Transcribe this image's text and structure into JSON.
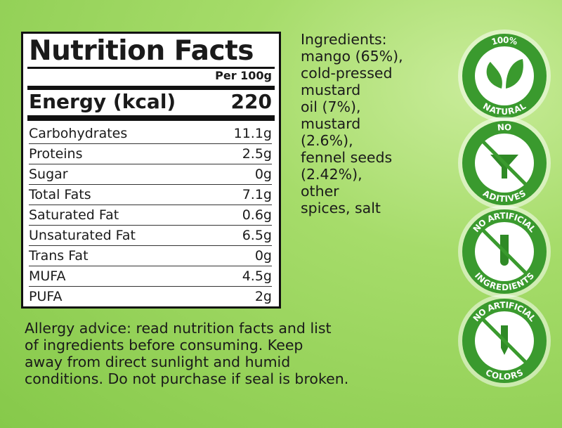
{
  "nutrition": {
    "title": "Nutrition Facts",
    "basis": "Per 100g",
    "energy": {
      "label": "Energy (kcal)",
      "value": "220"
    },
    "rows": [
      [
        "Carbohydrates",
        "11.1g"
      ],
      [
        "Proteins",
        "2.5g"
      ],
      [
        "Sugar",
        "0g"
      ],
      [
        "Total Fats",
        "7.1g"
      ],
      [
        "Saturated Fat",
        "0.6g"
      ],
      [
        "Unsaturated Fat",
        "6.5g"
      ],
      [
        "Trans Fat",
        "0g"
      ],
      [
        "MUFA",
        "4.5g"
      ],
      [
        "PUFA",
        "2g"
      ]
    ]
  },
  "ingredients": [
    "Ingredients:",
    "mango (65%),",
    "cold-pressed",
    "mustard",
    "oil (7%),",
    "mustard",
    "(2.6%),",
    "fennel seeds",
    "(2.42%),",
    "other",
    "spices, salt"
  ],
  "allergy": [
    "Allergy advice: read nutrition facts and list",
    "of ingredients before consuming. Keep",
    "away from direct sunlight and humid",
    "conditions. Do not purchase if seal is broken."
  ],
  "badges": [
    {
      "top": "100%",
      "bottom": "NATURAL"
    },
    {
      "top": "NO",
      "bottom": "ADITIVES"
    },
    {
      "top": "NO ARTIFICIAL",
      "bottom": "INGREDIENTS"
    },
    {
      "top": "NO ARTIFICIAL",
      "bottom": "COLORS"
    }
  ]
}
